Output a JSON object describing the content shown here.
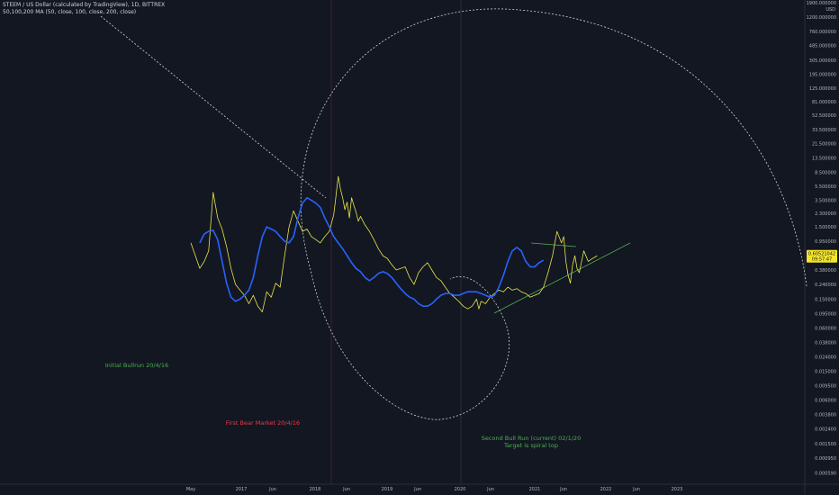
{
  "header": {
    "title": "STEEM / US Dollar (calculated by TradingView), 1D, BITTREX",
    "indicator": "50,100,200 MA (50, close, 100, close, 200, close)"
  },
  "colors": {
    "background": "#131722",
    "price_line": "#e8e54a",
    "ma_line": "#2962ff",
    "trendline": "#4caf50",
    "dashed": "#d1d4dc",
    "annotation_green": "#4caf50",
    "annotation_red": "#f23645",
    "price_badge": "#f5e52a"
  },
  "chart_data": {
    "type": "line",
    "yscale": "log",
    "y_unit": "USD",
    "ylim": [
      0.00045,
      1900
    ],
    "y_ticks": [
      "1900.000000",
      "1200.000000",
      "760.000000",
      "485.000000",
      "305.000000",
      "195.000000",
      "125.000000",
      "81.000000",
      "52.500000",
      "33.500000",
      "21.500000",
      "13.500000",
      "8.500000",
      "5.500000",
      "3.500000",
      "2.300000",
      "1.500000",
      "0.950000",
      "0.600000",
      "0.380000",
      "0.240000",
      "0.150000",
      "0.095000",
      "0.060000",
      "0.038000",
      "0.024000",
      "0.015000",
      "0.009500",
      "0.006000",
      "0.003800",
      "0.002400",
      "0.001500",
      "0.000950",
      "0.000590",
      "0.000380"
    ],
    "x_ticks": [
      "May",
      "2017",
      "Jun",
      "2018",
      "Jun",
      "2019",
      "Jun",
      "2020",
      "Jun",
      "2021",
      "Jun",
      "2022",
      "Jun",
      "2023"
    ],
    "current_price": "0.60521042",
    "countdown": "09:57:47",
    "series": [
      {
        "name": "STEEM / US Dollar",
        "points": [
          [
            0,
            0.9
          ],
          [
            4,
            0.6
          ],
          [
            8,
            0.4
          ],
          [
            12,
            0.5
          ],
          [
            16,
            0.7
          ],
          [
            20,
            4.5
          ],
          [
            24,
            2.0
          ],
          [
            28,
            1.4
          ],
          [
            32,
            0.8
          ],
          [
            36,
            0.4
          ],
          [
            40,
            0.24
          ],
          [
            44,
            0.2
          ],
          [
            48,
            0.17
          ],
          [
            52,
            0.13
          ],
          [
            56,
            0.17
          ],
          [
            60,
            0.12
          ],
          [
            64,
            0.1
          ],
          [
            68,
            0.19
          ],
          [
            72,
            0.16
          ],
          [
            76,
            0.25
          ],
          [
            80,
            0.22
          ],
          [
            84,
            0.6
          ],
          [
            88,
            1.5
          ],
          [
            92,
            2.5
          ],
          [
            96,
            1.8
          ],
          [
            100,
            1.3
          ],
          [
            104,
            1.4
          ],
          [
            108,
            1.1
          ],
          [
            112,
            1.0
          ],
          [
            116,
            0.9
          ],
          [
            120,
            1.1
          ],
          [
            124,
            1.3
          ],
          [
            128,
            2.2
          ],
          [
            130,
            4.0
          ],
          [
            132,
            7.5
          ],
          [
            134,
            5.0
          ],
          [
            136,
            3.8
          ],
          [
            138,
            2.6
          ],
          [
            140,
            3.3
          ],
          [
            142,
            2.0
          ],
          [
            144,
            3.8
          ],
          [
            146,
            3.0
          ],
          [
            148,
            2.4
          ],
          [
            150,
            1.8
          ],
          [
            152,
            2.1
          ],
          [
            156,
            1.6
          ],
          [
            160,
            1.3
          ],
          [
            164,
            1.0
          ],
          [
            168,
            0.75
          ],
          [
            172,
            0.6
          ],
          [
            176,
            0.55
          ],
          [
            180,
            0.45
          ],
          [
            184,
            0.38
          ],
          [
            188,
            0.4
          ],
          [
            192,
            0.42
          ],
          [
            196,
            0.3
          ],
          [
            200,
            0.24
          ],
          [
            204,
            0.35
          ],
          [
            208,
            0.42
          ],
          [
            212,
            0.48
          ],
          [
            216,
            0.38
          ],
          [
            220,
            0.3
          ],
          [
            224,
            0.27
          ],
          [
            228,
            0.22
          ],
          [
            232,
            0.18
          ],
          [
            236,
            0.16
          ],
          [
            240,
            0.14
          ],
          [
            244,
            0.12
          ],
          [
            248,
            0.11
          ],
          [
            252,
            0.12
          ],
          [
            256,
            0.15
          ],
          [
            258,
            0.11
          ],
          [
            260,
            0.14
          ],
          [
            264,
            0.13
          ],
          [
            268,
            0.16
          ],
          [
            272,
            0.18
          ],
          [
            276,
            0.2
          ],
          [
            280,
            0.19
          ],
          [
            284,
            0.22
          ],
          [
            288,
            0.2
          ],
          [
            292,
            0.21
          ],
          [
            296,
            0.19
          ],
          [
            300,
            0.18
          ],
          [
            304,
            0.16
          ],
          [
            308,
            0.17
          ],
          [
            312,
            0.18
          ],
          [
            316,
            0.22
          ],
          [
            320,
            0.35
          ],
          [
            324,
            0.6
          ],
          [
            328,
            1.3
          ],
          [
            332,
            0.9
          ],
          [
            334,
            1.1
          ],
          [
            336,
            0.5
          ],
          [
            338,
            0.32
          ],
          [
            340,
            0.25
          ],
          [
            342,
            0.45
          ],
          [
            344,
            0.6
          ],
          [
            346,
            0.4
          ],
          [
            348,
            0.35
          ],
          [
            352,
            0.7
          ],
          [
            356,
            0.5
          ],
          [
            360,
            0.55
          ],
          [
            364,
            0.6
          ]
        ]
      },
      {
        "name": "MA",
        "points": [
          [
            8,
            0.9
          ],
          [
            12,
            1.2
          ],
          [
            16,
            1.3
          ],
          [
            20,
            1.35
          ],
          [
            24,
            1.0
          ],
          [
            28,
            0.5
          ],
          [
            32,
            0.25
          ],
          [
            36,
            0.16
          ],
          [
            40,
            0.14
          ],
          [
            44,
            0.15
          ],
          [
            48,
            0.17
          ],
          [
            52,
            0.2
          ],
          [
            56,
            0.3
          ],
          [
            60,
            0.6
          ],
          [
            64,
            1.1
          ],
          [
            68,
            1.5
          ],
          [
            72,
            1.4
          ],
          [
            76,
            1.3
          ],
          [
            80,
            1.1
          ],
          [
            84,
            0.95
          ],
          [
            88,
            0.9
          ],
          [
            92,
            1.1
          ],
          [
            96,
            2.0
          ],
          [
            100,
            3.2
          ],
          [
            104,
            3.8
          ],
          [
            108,
            3.5
          ],
          [
            112,
            3.2
          ],
          [
            116,
            2.8
          ],
          [
            120,
            2.0
          ],
          [
            124,
            1.5
          ],
          [
            128,
            1.1
          ],
          [
            132,
            0.9
          ],
          [
            136,
            0.75
          ],
          [
            140,
            0.6
          ],
          [
            144,
            0.48
          ],
          [
            148,
            0.4
          ],
          [
            152,
            0.36
          ],
          [
            156,
            0.3
          ],
          [
            160,
            0.27
          ],
          [
            164,
            0.3
          ],
          [
            168,
            0.34
          ],
          [
            172,
            0.36
          ],
          [
            176,
            0.34
          ],
          [
            180,
            0.3
          ],
          [
            184,
            0.25
          ],
          [
            188,
            0.21
          ],
          [
            192,
            0.18
          ],
          [
            196,
            0.16
          ],
          [
            200,
            0.15
          ],
          [
            204,
            0.13
          ],
          [
            208,
            0.12
          ],
          [
            212,
            0.12
          ],
          [
            216,
            0.13
          ],
          [
            220,
            0.15
          ],
          [
            224,
            0.17
          ],
          [
            228,
            0.18
          ],
          [
            232,
            0.18
          ],
          [
            236,
            0.17
          ],
          [
            240,
            0.17
          ],
          [
            244,
            0.18
          ],
          [
            248,
            0.19
          ],
          [
            252,
            0.19
          ],
          [
            256,
            0.19
          ],
          [
            260,
            0.18
          ],
          [
            264,
            0.17
          ],
          [
            268,
            0.16
          ],
          [
            272,
            0.17
          ],
          [
            276,
            0.22
          ],
          [
            280,
            0.32
          ],
          [
            284,
            0.5
          ],
          [
            288,
            0.7
          ],
          [
            292,
            0.78
          ],
          [
            296,
            0.7
          ],
          [
            300,
            0.5
          ],
          [
            304,
            0.42
          ],
          [
            308,
            0.42
          ],
          [
            312,
            0.48
          ],
          [
            316,
            0.52
          ]
        ]
      }
    ],
    "annotations": [
      {
        "text": "Initial Bullrun 20/4/16",
        "color": "#4caf50"
      },
      {
        "text": "First Bear Market 20/4/16",
        "color": "#f23645"
      },
      {
        "text": "Second Bull Run (current) 02/1/20",
        "color": "#4caf50"
      },
      {
        "text": "Target is spiral top",
        "color": "#4caf50"
      }
    ]
  }
}
